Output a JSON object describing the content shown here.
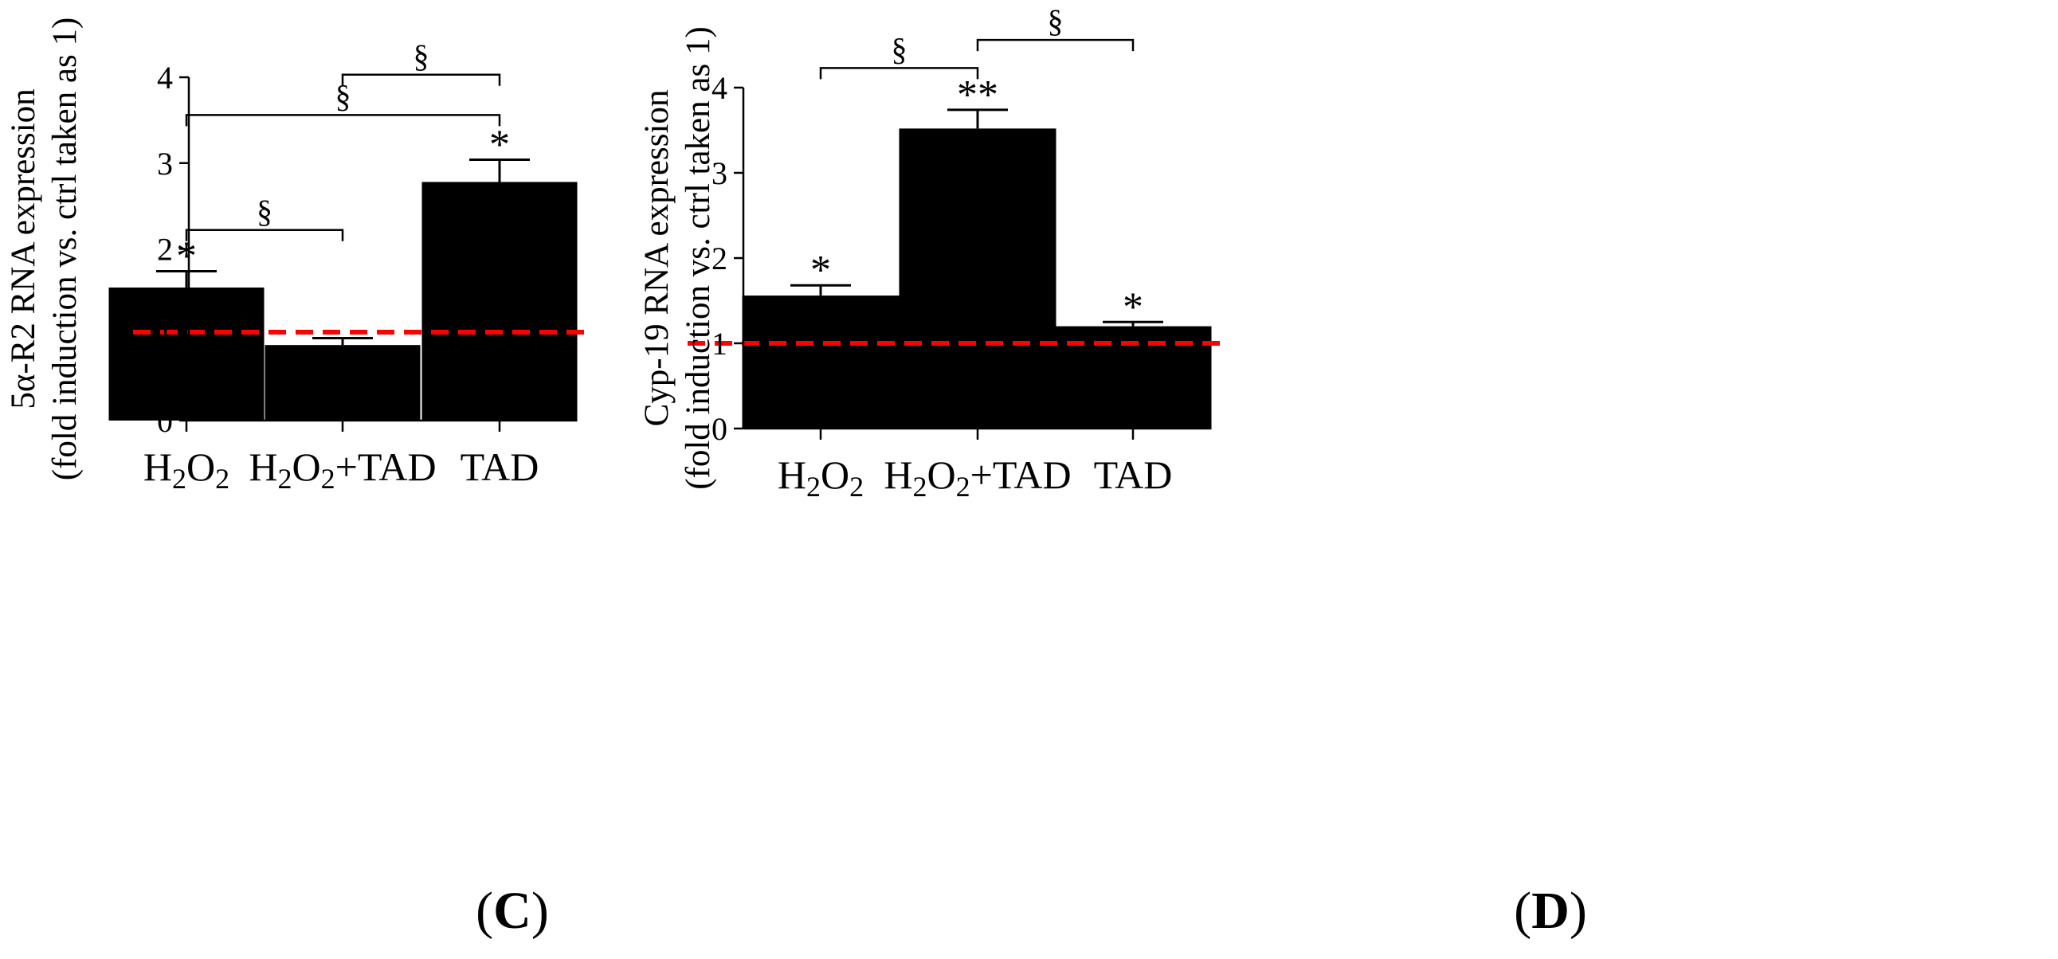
{
  "figure": {
    "panels": [
      {
        "id": "C",
        "label_open": "(",
        "label_letter": "C",
        "label_close": ")"
      },
      {
        "id": "D",
        "label_open": "(",
        "label_letter": "D",
        "label_close": ")"
      }
    ],
    "colors": {
      "bar": "#000000",
      "reference_line": "#ff0000",
      "axis": "#000000"
    }
  },
  "chart_data": [
    {
      "panel": "C",
      "type": "bar",
      "categories": [
        {
          "base": "H",
          "sub1": "2",
          "mid": "O",
          "sub2": "2",
          "suffix": ""
        },
        {
          "base": "H",
          "sub1": "2",
          "mid": "O",
          "sub2": "2",
          "suffix": "+TAD"
        },
        {
          "base": "TAD",
          "sub1": "",
          "mid": "",
          "sub2": "",
          "suffix": ""
        }
      ],
      "values": [
        1.55,
        0.88,
        2.78
      ],
      "errors": [
        0.19,
        0.08,
        0.26
      ],
      "significance": [
        "*",
        "",
        "*"
      ],
      "ylabel_line1": "5α-R2 RNA expression",
      "ylabel_line2": "(fold induction vs. ctrl taken as 1)",
      "ylim": [
        0,
        4
      ],
      "yticks": [
        "0",
        "1",
        "2",
        "3",
        "4"
      ],
      "reference_line": 1.03,
      "brackets": [
        {
          "from": 0,
          "to": 1,
          "level": 2.22,
          "label": "§"
        },
        {
          "from": 0,
          "to": 2,
          "level": 3.56,
          "label": "§"
        },
        {
          "from": 1,
          "to": 2,
          "level": 4.03,
          "label": "§"
        }
      ]
    },
    {
      "panel": "D",
      "type": "bar",
      "categories": [
        {
          "base": "H",
          "sub1": "2",
          "mid": "O",
          "sub2": "2",
          "suffix": ""
        },
        {
          "base": "H",
          "sub1": "2",
          "mid": "O",
          "sub2": "2",
          "suffix": "+TAD"
        },
        {
          "base": "TAD",
          "sub1": "",
          "mid": "",
          "sub2": "",
          "suffix": ""
        }
      ],
      "values": [
        1.56,
        3.52,
        1.2
      ],
      "errors": [
        0.12,
        0.22,
        0.05
      ],
      "significance": [
        "*",
        "**",
        "*"
      ],
      "ylabel_line1": "Cyp-19 RNA expression",
      "ylabel_line2": "(fold induction vs. ctrl taken as 1)",
      "ylim": [
        0,
        4
      ],
      "yticks": [
        "0",
        "1",
        "2",
        "3",
        "4"
      ],
      "reference_line": 1.0,
      "brackets": [
        {
          "from": 0,
          "to": 1,
          "level": 4.23,
          "label": "§"
        },
        {
          "from": 1,
          "to": 2,
          "level": 4.56,
          "label": "§"
        }
      ]
    }
  ]
}
